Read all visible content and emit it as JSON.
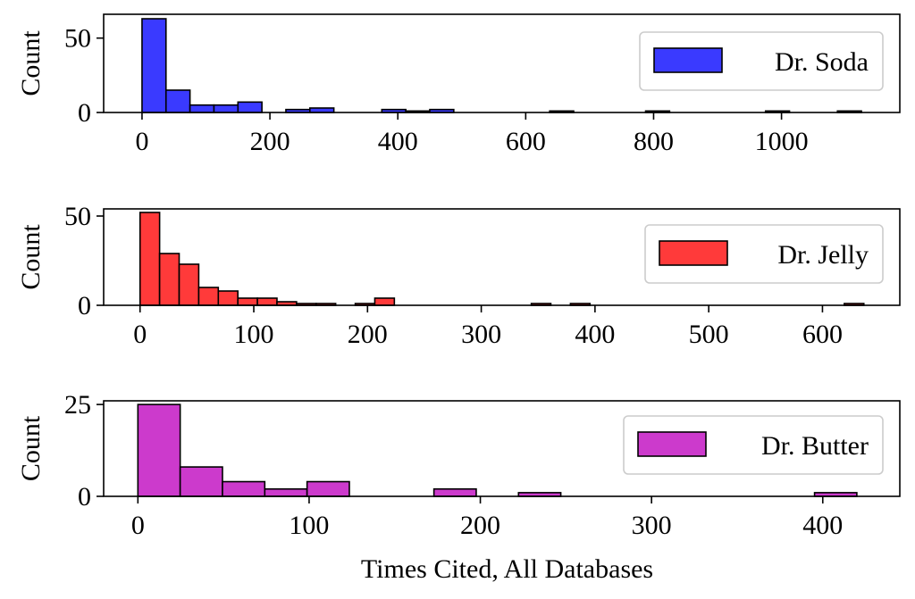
{
  "chart_data": [
    {
      "type": "bar",
      "series": [
        {
          "name": "Dr. Soda",
          "color": "#3a3aff",
          "bin_width": 37.5,
          "bins": [
            {
              "x0": 0,
              "count": 63
            },
            {
              "x0": 37.5,
              "count": 15
            },
            {
              "x0": 75,
              "count": 5
            },
            {
              "x0": 112.5,
              "count": 5
            },
            {
              "x0": 150,
              "count": 7
            },
            {
              "x0": 187.5,
              "count": 0
            },
            {
              "x0": 225,
              "count": 2
            },
            {
              "x0": 262.5,
              "count": 3
            },
            {
              "x0": 300,
              "count": 0
            },
            {
              "x0": 337.5,
              "count": 0
            },
            {
              "x0": 375,
              "count": 2
            },
            {
              "x0": 412.5,
              "count": 1
            },
            {
              "x0": 450,
              "count": 2
            },
            {
              "x0": 487.5,
              "count": 0
            },
            {
              "x0": 525,
              "count": 0
            },
            {
              "x0": 562.5,
              "count": 0
            },
            {
              "x0": 600,
              "count": 0
            },
            {
              "x0": 637.5,
              "count": 1
            },
            {
              "x0": 675,
              "count": 0
            },
            {
              "x0": 712.5,
              "count": 0
            },
            {
              "x0": 750,
              "count": 0
            },
            {
              "x0": 787.5,
              "count": 1
            },
            {
              "x0": 825,
              "count": 0
            },
            {
              "x0": 862.5,
              "count": 0
            },
            {
              "x0": 900,
              "count": 0
            },
            {
              "x0": 937.5,
              "count": 0
            },
            {
              "x0": 975,
              "count": 1
            },
            {
              "x0": 1012.5,
              "count": 0
            },
            {
              "x0": 1050,
              "count": 0
            },
            {
              "x0": 1087.5,
              "count": 1
            }
          ]
        }
      ],
      "xlim": [
        -60,
        1185
      ],
      "ylim": [
        0,
        66
      ],
      "xticks": [
        0,
        200,
        400,
        600,
        800,
        1000
      ],
      "yticks": [
        0,
        50
      ],
      "xlabel": "",
      "ylabel": "Count",
      "legend": "right"
    },
    {
      "type": "bar",
      "series": [
        {
          "name": "Dr. Jelly",
          "color": "#ff3a3a",
          "bin_width": 17.2,
          "bins": [
            {
              "x0": 0,
              "count": 52
            },
            {
              "x0": 17.2,
              "count": 29
            },
            {
              "x0": 34.4,
              "count": 23
            },
            {
              "x0": 51.6,
              "count": 10
            },
            {
              "x0": 68.8,
              "count": 8
            },
            {
              "x0": 86,
              "count": 4
            },
            {
              "x0": 103.2,
              "count": 4
            },
            {
              "x0": 120.4,
              "count": 2
            },
            {
              "x0": 137.6,
              "count": 1
            },
            {
              "x0": 154.8,
              "count": 1
            },
            {
              "x0": 172,
              "count": 0
            },
            {
              "x0": 189.2,
              "count": 1
            },
            {
              "x0": 206.4,
              "count": 4
            },
            {
              "x0": 223.6,
              "count": 0
            },
            {
              "x0": 240.8,
              "count": 0
            },
            {
              "x0": 258,
              "count": 0
            },
            {
              "x0": 275.2,
              "count": 0
            },
            {
              "x0": 292.4,
              "count": 0
            },
            {
              "x0": 309.6,
              "count": 0
            },
            {
              "x0": 326.8,
              "count": 0
            },
            {
              "x0": 344,
              "count": 1
            },
            {
              "x0": 361.2,
              "count": 0
            },
            {
              "x0": 378.4,
              "count": 1
            },
            {
              "x0": 395.6,
              "count": 0
            },
            {
              "x0": 412.8,
              "count": 0
            },
            {
              "x0": 430,
              "count": 0
            },
            {
              "x0": 447.2,
              "count": 0
            },
            {
              "x0": 464.4,
              "count": 0
            },
            {
              "x0": 481.6,
              "count": 0
            },
            {
              "x0": 498.8,
              "count": 0
            },
            {
              "x0": 516,
              "count": 0
            },
            {
              "x0": 533.2,
              "count": 0
            },
            {
              "x0": 550.4,
              "count": 0
            },
            {
              "x0": 567.6,
              "count": 0
            },
            {
              "x0": 584.8,
              "count": 0
            },
            {
              "x0": 602,
              "count": 0
            },
            {
              "x0": 619.2,
              "count": 1
            }
          ]
        }
      ],
      "xlim": [
        -32,
        668
      ],
      "ylim": [
        0,
        54
      ],
      "xticks": [
        0,
        100,
        200,
        300,
        400,
        500,
        600
      ],
      "yticks": [
        0,
        50
      ],
      "xlabel": "",
      "ylabel": "Count",
      "legend": "right"
    },
    {
      "type": "bar",
      "series": [
        {
          "name": "Dr. Butter",
          "color": "#cc3acc",
          "bin_width": 24.7,
          "bins": [
            {
              "x0": 0,
              "count": 25
            },
            {
              "x0": 24.7,
              "count": 8
            },
            {
              "x0": 49.4,
              "count": 4
            },
            {
              "x0": 74.1,
              "count": 2
            },
            {
              "x0": 98.8,
              "count": 4
            },
            {
              "x0": 123.5,
              "count": 0
            },
            {
              "x0": 148.2,
              "count": 0
            },
            {
              "x0": 172.9,
              "count": 2
            },
            {
              "x0": 197.6,
              "count": 0
            },
            {
              "x0": 222.3,
              "count": 1
            },
            {
              "x0": 247,
              "count": 0
            },
            {
              "x0": 271.7,
              "count": 0
            },
            {
              "x0": 296.4,
              "count": 0
            },
            {
              "x0": 321.1,
              "count": 0
            },
            {
              "x0": 345.8,
              "count": 0
            },
            {
              "x0": 370.5,
              "count": 0
            },
            {
              "x0": 395.2,
              "count": 1
            }
          ]
        }
      ],
      "xlim": [
        -20,
        445
      ],
      "ylim": [
        0,
        26
      ],
      "xticks": [
        0,
        100,
        200,
        300,
        400
      ],
      "yticks": [
        0,
        25
      ],
      "xlabel": "Times Cited, All Databases",
      "ylabel": "Count",
      "legend": "right"
    }
  ]
}
